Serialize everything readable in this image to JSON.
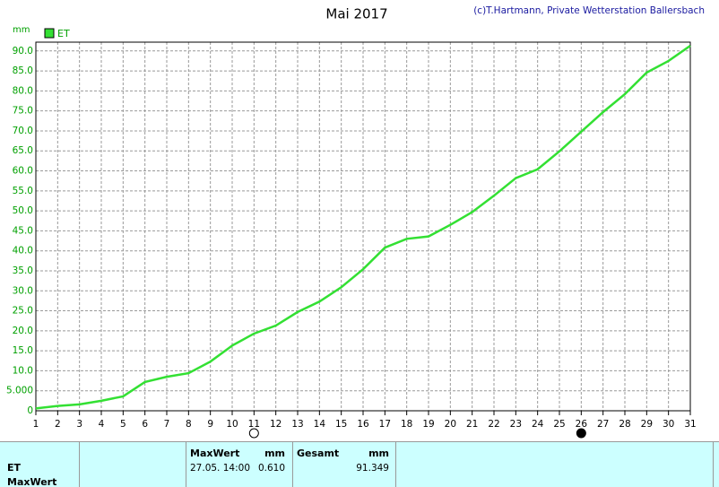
{
  "chart_data": {
    "type": "line",
    "title": "Mai 2017",
    "subtitle": "(c)T.Hartmann, Private Wetterstation Ballersbach",
    "y_label": "mm",
    "categories": [
      "1",
      "2",
      "3",
      "4",
      "5",
      "6",
      "7",
      "8",
      "9",
      "10",
      "11",
      "12",
      "13",
      "14",
      "15",
      "16",
      "17",
      "18",
      "19",
      "20",
      "21",
      "22",
      "23",
      "24",
      "25",
      "26",
      "27",
      "28",
      "29",
      "30",
      "31"
    ],
    "series": [
      {
        "name": "ET",
        "color": "#33e033",
        "values": [
          0.6,
          1.2,
          1.6,
          2.5,
          3.6,
          7.2,
          8.5,
          9.4,
          12.3,
          16.3,
          19.3,
          21.3,
          24.7,
          27.3,
          30.9,
          35.4,
          40.8,
          43.0,
          43.6,
          46.5,
          49.7,
          53.8,
          58.2,
          60.4,
          64.9,
          69.8,
          74.7,
          79.2,
          84.6,
          87.5,
          91.3
        ]
      }
    ],
    "ylim": [
      0,
      92.2
    ],
    "yticks": [
      0,
      {
        "value": 5,
        "label": "5.000"
      },
      {
        "value": 10,
        "label": "10.0"
      },
      {
        "value": 15,
        "label": "15.0"
      },
      {
        "value": 20,
        "label": "20.0"
      },
      {
        "value": 25,
        "label": "25.0"
      },
      {
        "value": 30,
        "label": "30.0"
      },
      {
        "value": 35,
        "label": "35.0"
      },
      {
        "value": 40,
        "label": "40.0"
      },
      {
        "value": 45,
        "label": "45.0"
      },
      {
        "value": 50,
        "label": "50.0"
      },
      {
        "value": 55,
        "label": "55.0"
      },
      {
        "value": 60,
        "label": "60.0"
      },
      {
        "value": 65,
        "label": "65.0"
      },
      {
        "value": 70,
        "label": "70.0"
      },
      {
        "value": 75,
        "label": "75.0"
      },
      {
        "value": 80,
        "label": "80.0"
      },
      {
        "value": 85,
        "label": "85.0"
      },
      {
        "value": 90,
        "label": "90.0"
      }
    ],
    "grid": true
  },
  "table": {
    "header": [
      "MaxWert",
      "mm",
      "Gesamt",
      "mm"
    ],
    "rows": [
      [
        "ET",
        "27.05. 14:00",
        "0.610",
        "91.349"
      ],
      [
        "MaxWert"
      ]
    ]
  }
}
